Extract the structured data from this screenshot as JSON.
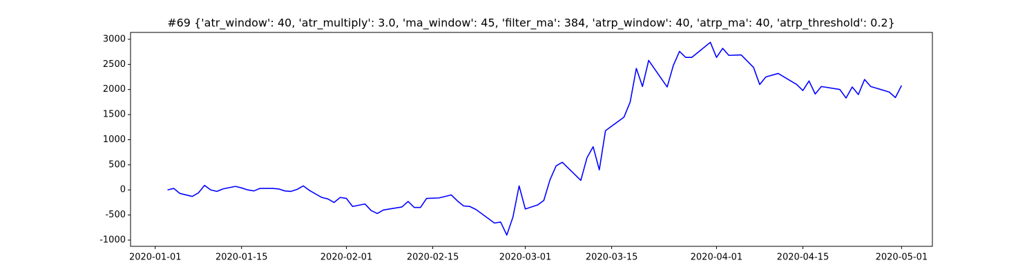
{
  "chart_data": {
    "type": "line",
    "title": "#69 {'atr_window': 40, 'atr_multiply': 3.0, 'ma_window': 45, 'filter_ma': 384, 'atrp_window': 40, 'atrp_ma': 40, 'atrp_threshold': 0.2}",
    "x": [
      "2020-01-03",
      "2020-01-04",
      "2020-01-05",
      "2020-01-07",
      "2020-01-08",
      "2020-01-09",
      "2020-01-10",
      "2020-01-11",
      "2020-01-12",
      "2020-01-14",
      "2020-01-15",
      "2020-01-16",
      "2020-01-17",
      "2020-01-18",
      "2020-01-20",
      "2020-01-21",
      "2020-01-22",
      "2020-01-23",
      "2020-01-24",
      "2020-01-25",
      "2020-01-26",
      "2020-01-28",
      "2020-01-29",
      "2020-01-30",
      "2020-01-31",
      "2020-02-01",
      "2020-02-02",
      "2020-02-04",
      "2020-02-05",
      "2020-02-06",
      "2020-02-07",
      "2020-02-10",
      "2020-02-11",
      "2020-02-12",
      "2020-02-13",
      "2020-02-14",
      "2020-02-16",
      "2020-02-18",
      "2020-02-19",
      "2020-02-20",
      "2020-02-21",
      "2020-02-22",
      "2020-02-23",
      "2020-02-25",
      "2020-02-26",
      "2020-02-27",
      "2020-02-28",
      "2020-02-29",
      "2020-03-01",
      "2020-03-03",
      "2020-03-04",
      "2020-03-05",
      "2020-03-06",
      "2020-03-07",
      "2020-03-08",
      "2020-03-10",
      "2020-03-11",
      "2020-03-12",
      "2020-03-13",
      "2020-03-14",
      "2020-03-17",
      "2020-03-18",
      "2020-03-19",
      "2020-03-20",
      "2020-03-21",
      "2020-03-24",
      "2020-03-25",
      "2020-03-26",
      "2020-03-27",
      "2020-03-28",
      "2020-03-31",
      "2020-04-01",
      "2020-04-02",
      "2020-04-03",
      "2020-04-05",
      "2020-04-07",
      "2020-04-08",
      "2020-04-09",
      "2020-04-11",
      "2020-04-14",
      "2020-04-15",
      "2020-04-16",
      "2020-04-17",
      "2020-04-18",
      "2020-04-21",
      "2020-04-22",
      "2020-04-23",
      "2020-04-24",
      "2020-04-25",
      "2020-04-26",
      "2020-04-29",
      "2020-04-30",
      "2020-05-01"
    ],
    "series": [
      {
        "color": "#0000ff",
        "values": [
          0,
          30,
          -70,
          -130,
          -60,
          90,
          0,
          -30,
          20,
          70,
          40,
          0,
          -20,
          30,
          30,
          20,
          -20,
          -30,
          10,
          80,
          -10,
          -150,
          -180,
          -250,
          -150,
          -170,
          -330,
          -280,
          -410,
          -470,
          -400,
          -340,
          -230,
          -350,
          -350,
          -170,
          -160,
          -100,
          -220,
          -320,
          -330,
          -390,
          -480,
          -660,
          -640,
          -900,
          -540,
          80,
          -380,
          -300,
          -210,
          200,
          480,
          550,
          430,
          190,
          640,
          860,
          400,
          1180,
          1450,
          1750,
          2420,
          2060,
          2580,
          2050,
          2480,
          2760,
          2640,
          2640,
          2940,
          2640,
          2820,
          2680,
          2690,
          2440,
          2100,
          2250,
          2320,
          2100,
          1980,
          2170,
          1910,
          2060,
          2000,
          1830,
          2050,
          1900,
          2200,
          2060,
          1950,
          1840,
          2080
        ]
      }
    ],
    "xlim": [
      "2019-12-28",
      "2020-05-06"
    ],
    "xticks": [
      "2020-01-01",
      "2020-01-15",
      "2020-02-01",
      "2020-02-15",
      "2020-03-01",
      "2020-03-15",
      "2020-04-01",
      "2020-04-15",
      "2020-05-01"
    ],
    "ylim": [
      -1124,
      3137
    ],
    "yticks": [
      -1000,
      -500,
      0,
      500,
      1000,
      1500,
      2000,
      2500,
      3000
    ]
  }
}
